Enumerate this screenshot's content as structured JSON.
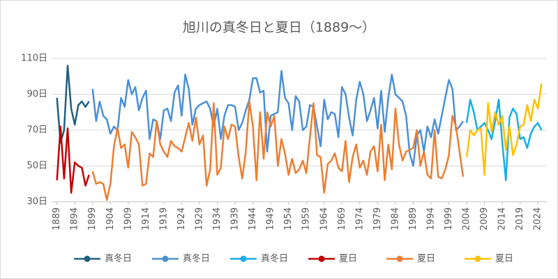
{
  "chart_data": {
    "type": "line",
    "title": "旭川の真冬日と夏日（1889～）",
    "xlim": [
      1887.5,
      2026.5
    ],
    "xticks": [
      1889,
      1894,
      1899,
      1904,
      1909,
      1914,
      1919,
      1924,
      1929,
      1934,
      1939,
      1944,
      1949,
      1954,
      1959,
      1964,
      1969,
      1974,
      1979,
      1984,
      1989,
      1994,
      1999,
      2004,
      2009,
      2014,
      2019,
      2024
    ],
    "ylim": [
      30,
      110
    ],
    "yticks": [
      {
        "value": 30,
        "label": "30日"
      },
      {
        "value": 50,
        "label": "50日"
      },
      {
        "value": 70,
        "label": "70日"
      },
      {
        "value": 90,
        "label": "90日"
      },
      {
        "value": 110,
        "label": "110日"
      }
    ],
    "grid": true,
    "legend": "bottom",
    "series": [
      {
        "name": "真冬日",
        "color": "#1f5f7e",
        "x": [
          1889,
          1890,
          1891,
          1892,
          1893,
          1894,
          1895,
          1896,
          1897,
          1898
        ],
        "values": [
          88,
          63,
          70,
          106,
          82,
          73,
          84,
          86,
          83,
          86
        ]
      },
      {
        "name": "真冬日",
        "color": "#4a8fd8",
        "x": [
          1899,
          1900,
          1901,
          1902,
          1903,
          1904,
          1905,
          1906,
          1907,
          1908,
          1909,
          1910,
          1911,
          1912,
          1913,
          1914,
          1915,
          1916,
          1917,
          1918,
          1919,
          1920,
          1921,
          1922,
          1923,
          1924,
          1925,
          1926,
          1927,
          1928,
          1929,
          1930,
          1931,
          1932,
          1933,
          1934,
          1935,
          1936,
          1937,
          1938,
          1939,
          1940,
          1941,
          1942,
          1943,
          1944,
          1945,
          1946,
          1947,
          1948,
          1949,
          1950,
          1951,
          1952,
          1953,
          1954,
          1955,
          1956,
          1957,
          1958,
          1959,
          1960,
          1961,
          1962,
          1963,
          1964,
          1965,
          1966,
          1967,
          1968,
          1969,
          1970,
          1971,
          1972,
          1973,
          1974,
          1975,
          1976,
          1977,
          1978,
          1979,
          1980,
          1981,
          1982,
          1983,
          1984,
          1985,
          1986,
          1987,
          1988,
          1989,
          1990,
          1991,
          1992,
          1993,
          1994,
          1995,
          1996,
          1997,
          1998,
          1999,
          2000,
          2001,
          2002,
          2003
        ],
        "values": [
          93,
          75,
          86,
          78,
          76,
          68,
          72,
          70,
          88,
          83,
          98,
          90,
          94,
          81,
          88,
          92,
          65,
          76,
          75,
          65,
          81,
          82,
          75,
          91,
          95,
          78,
          101,
          93,
          73,
          82,
          84,
          85,
          86,
          82,
          72,
          82,
          65,
          78,
          84,
          84,
          83,
          70,
          74,
          81,
          87,
          99,
          99,
          91,
          92,
          58,
          78,
          79,
          80,
          103,
          88,
          85,
          70,
          89,
          86,
          70,
          72,
          84,
          83,
          72,
          61,
          87,
          76,
          80,
          79,
          66,
          94,
          90,
          77,
          67,
          87,
          97,
          90,
          75,
          81,
          88,
          71,
          92,
          69,
          88,
          101,
          90,
          88,
          86,
          78,
          57,
          50,
          67,
          70,
          58,
          72,
          66,
          76,
          68,
          78,
          88,
          98,
          93,
          70,
          72,
          75
        ]
      },
      {
        "name": "真冬日",
        "color": "#13aee6",
        "x": [
          2004,
          2005,
          2006,
          2007,
          2008,
          2009,
          2010,
          2011,
          2012,
          2013,
          2014,
          2015,
          2016,
          2017,
          2018,
          2019,
          2020,
          2021,
          2022,
          2023,
          2024,
          2025
        ],
        "values": [
          74,
          87,
          80,
          70,
          72,
          74,
          70,
          65,
          75,
          87,
          63,
          42,
          77,
          82,
          79,
          65,
          66,
          60,
          68,
          72,
          74,
          70
        ]
      },
      {
        "name": "夏日",
        "color": "#c00000",
        "x": [
          1889,
          1890,
          1891,
          1892,
          1893,
          1894,
          1895,
          1896,
          1897,
          1898
        ],
        "values": [
          42,
          72,
          43,
          71,
          35,
          52,
          50,
          49,
          39,
          45
        ]
      },
      {
        "name": "夏日",
        "color": "#ed7d31",
        "x": [
          1899,
          1900,
          1901,
          1902,
          1903,
          1904,
          1905,
          1906,
          1907,
          1908,
          1909,
          1910,
          1911,
          1912,
          1913,
          1914,
          1915,
          1916,
          1917,
          1918,
          1919,
          1920,
          1921,
          1922,
          1923,
          1924,
          1925,
          1926,
          1927,
          1928,
          1929,
          1930,
          1931,
          1932,
          1933,
          1934,
          1935,
          1936,
          1937,
          1938,
          1939,
          1940,
          1941,
          1942,
          1943,
          1944,
          1945,
          1946,
          1947,
          1948,
          1949,
          1950,
          1951,
          1952,
          1953,
          1954,
          1955,
          1956,
          1957,
          1958,
          1959,
          1960,
          1961,
          1962,
          1963,
          1964,
          1965,
          1966,
          1967,
          1968,
          1969,
          1970,
          1971,
          1972,
          1973,
          1974,
          1975,
          1976,
          1977,
          1978,
          1979,
          1980,
          1981,
          1982,
          1983,
          1984,
          1985,
          1986,
          1987,
          1988,
          1989,
          1990,
          1991,
          1992,
          1993,
          1994,
          1995,
          1996,
          1997,
          1998,
          1999,
          2000,
          2001,
          2002,
          2003
        ],
        "values": [
          47,
          40,
          41,
          40,
          31,
          40,
          61,
          71,
          60,
          62,
          49,
          69,
          66,
          62,
          39,
          40,
          57,
          55,
          75,
          62,
          58,
          55,
          64,
          61,
          60,
          58,
          66,
          74,
          64,
          77,
          62,
          67,
          39,
          48,
          85,
          45,
          49,
          72,
          65,
          73,
          72,
          55,
          43,
          58,
          86,
          72,
          42,
          80,
          54,
          80,
          72,
          78,
          50,
          65,
          57,
          45,
          54,
          46,
          48,
          53,
          46,
          66,
          85,
          56,
          55,
          35,
          51,
          53,
          57,
          49,
          47,
          64,
          41,
          55,
          62,
          49,
          53,
          45,
          58,
          61,
          47,
          73,
          42,
          62,
          48,
          82,
          62,
          53,
          58,
          59,
          60,
          70,
          50,
          58,
          45,
          43,
          70,
          44,
          43,
          48,
          56,
          78,
          72,
          58,
          44
        ]
      },
      {
        "name": "夏日",
        "color": "#ffc000",
        "x": [
          2004,
          2005,
          2006,
          2007,
          2008,
          2009,
          2010,
          2011,
          2012,
          2013,
          2014,
          2015,
          2016,
          2017,
          2018,
          2019,
          2020,
          2021,
          2022,
          2023,
          2024,
          2025
        ],
        "values": [
          55,
          70,
          67,
          70,
          71,
          45,
          85,
          69,
          80,
          73,
          78,
          59,
          72,
          56,
          62,
          72,
          73,
          84,
          75,
          87,
          82,
          96
        ]
      }
    ]
  }
}
